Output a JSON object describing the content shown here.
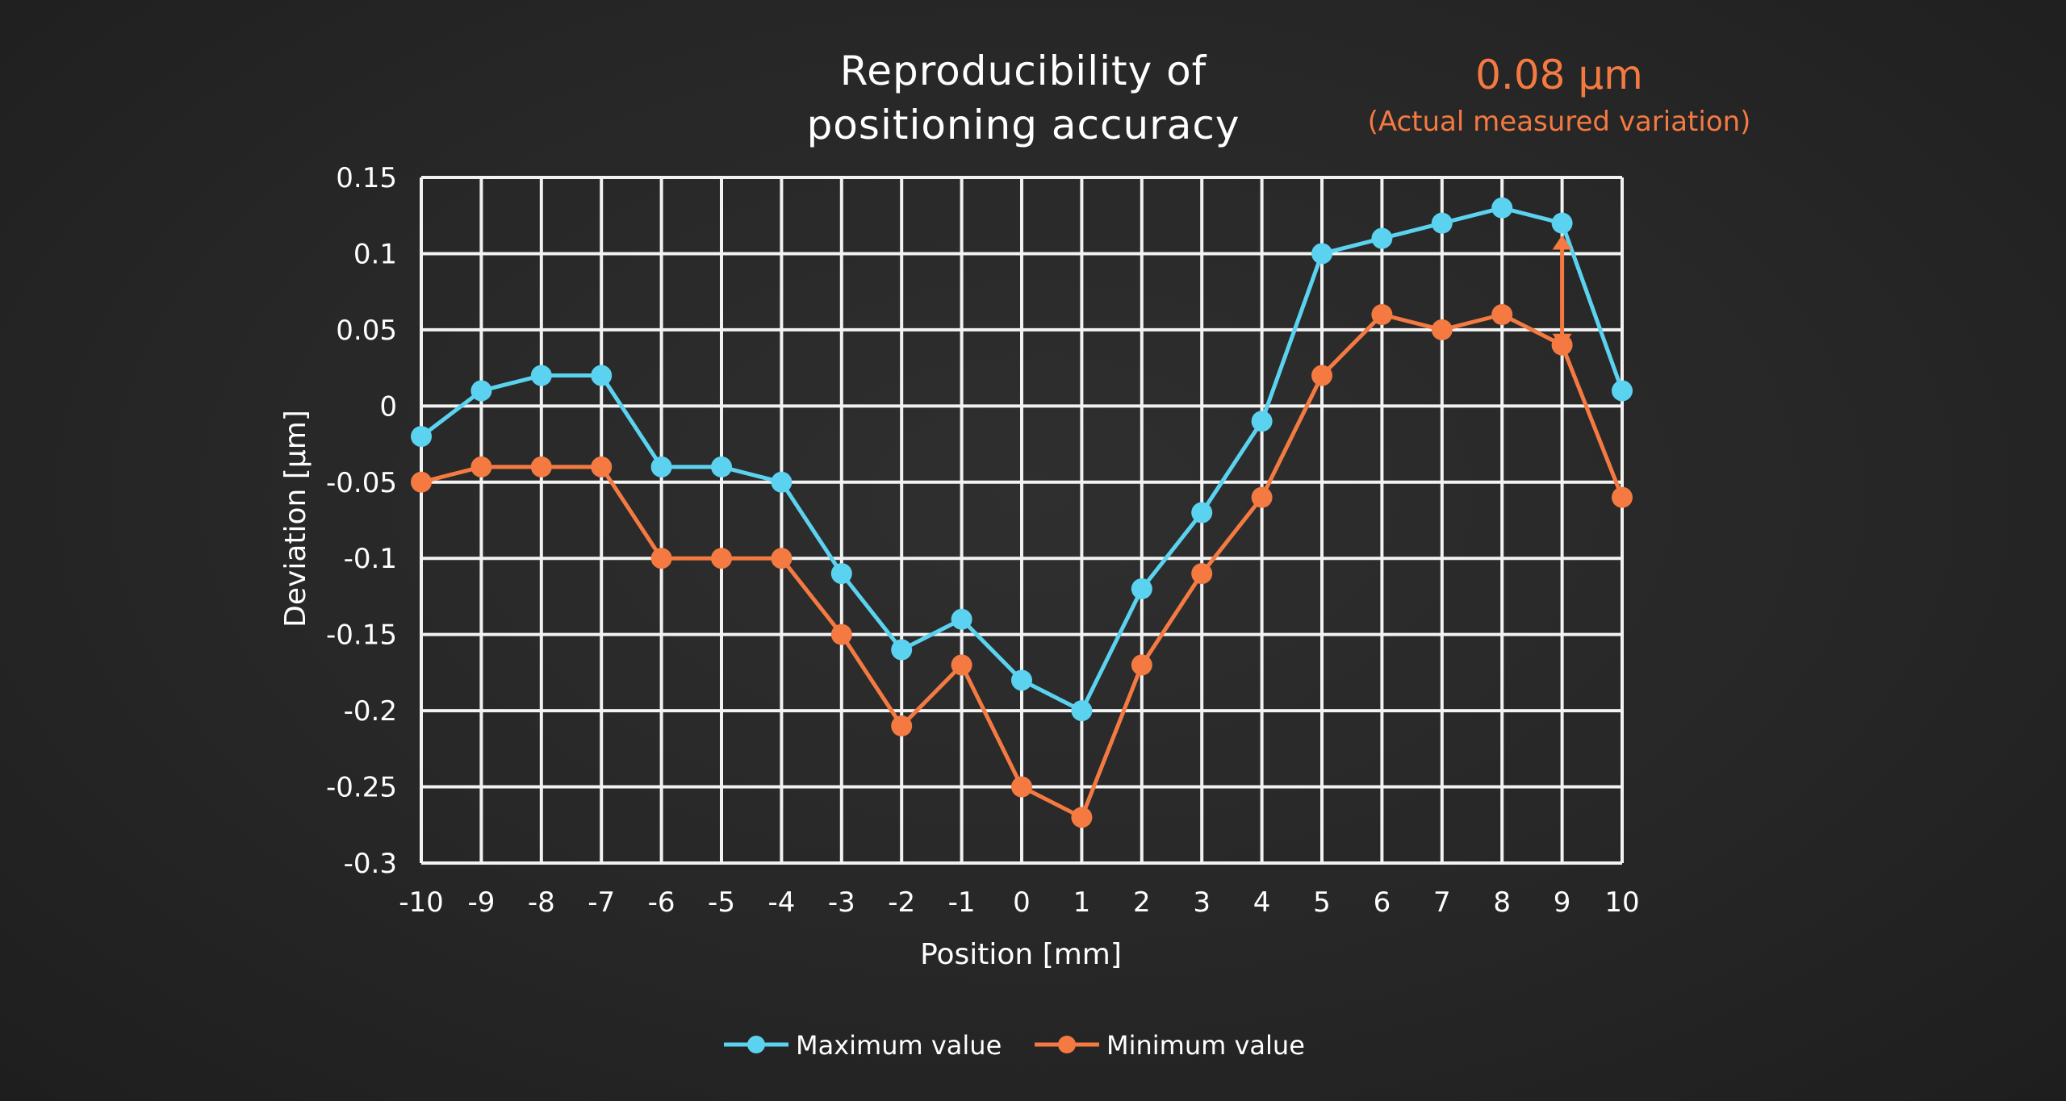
{
  "colors": {
    "background": "#262626",
    "max_series": "#5bd3f0",
    "min_series": "#f47a42",
    "grid": "#f2f2f2",
    "text": "#ffffff",
    "annotation": "#f47a42"
  },
  "annotation": {
    "value": "0.08 µm",
    "label": "(Actual measured variation)",
    "x": 9,
    "y_from": 0.11,
    "y_to": 0.04
  },
  "chart_data": {
    "type": "line",
    "title_line1": "Reproducibility of",
    "title_line2": "positioning accuracy",
    "xlabel": "Position [mm]",
    "ylabel": "Deviation [µm]",
    "x": [
      -10,
      -9,
      -8,
      -7,
      -6,
      -5,
      -4,
      -3,
      -2,
      -1,
      0,
      1,
      2,
      3,
      4,
      5,
      6,
      7,
      8,
      9,
      10
    ],
    "x_tick_labels": [
      "-10",
      "-9",
      "-8",
      "-7",
      "-6",
      "-5",
      "-4",
      "-3",
      "-2",
      "-1",
      "0",
      "1",
      "2",
      "3",
      "4",
      "5",
      "6",
      "7",
      "8",
      "9",
      "10"
    ],
    "xlim": [
      -10,
      10
    ],
    "ylim": [
      -0.3,
      0.15
    ],
    "y_ticks": [
      0.15,
      0.1,
      0.05,
      0,
      -0.05,
      -0.1,
      -0.15,
      -0.2,
      -0.25,
      -0.3
    ],
    "y_tick_labels": [
      "0.15",
      "0.1",
      "0.05",
      "0",
      "-0.05",
      "-0.1",
      "-0.15",
      "-0.2",
      "-0.25",
      "-0.3"
    ],
    "grid": true,
    "legend_position": "bottom",
    "series": [
      {
        "name": "Maximum value",
        "color": "#5bd3f0",
        "values": [
          -0.02,
          0.01,
          0.02,
          0.02,
          -0.04,
          -0.04,
          -0.05,
          -0.11,
          -0.16,
          -0.14,
          -0.18,
          -0.2,
          -0.12,
          -0.07,
          -0.01,
          0.1,
          0.11,
          0.12,
          0.13,
          0.12,
          0.01
        ]
      },
      {
        "name": "Minimum value",
        "color": "#f47a42",
        "values": [
          -0.05,
          -0.04,
          -0.04,
          -0.04,
          -0.1,
          -0.1,
          -0.1,
          -0.15,
          -0.21,
          -0.17,
          -0.25,
          -0.27,
          -0.17,
          -0.11,
          -0.06,
          0.02,
          0.06,
          0.05,
          0.06,
          0.04,
          -0.06
        ]
      }
    ]
  }
}
